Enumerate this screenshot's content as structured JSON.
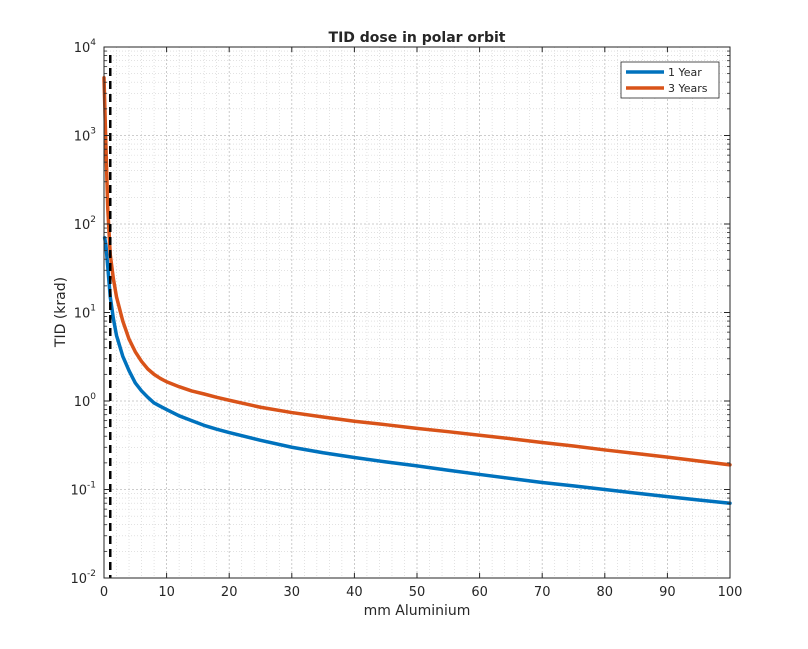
{
  "chart_data": {
    "type": "line",
    "title": "TID dose in polar orbit",
    "xlabel": "mm Aluminium",
    "ylabel": "TID (krad)",
    "xlim": [
      0,
      100
    ],
    "ylim": [
      0.01,
      10000
    ],
    "yscale": "log",
    "grid": true,
    "minor_grid": true,
    "legend_position": "top-right",
    "x_ticks": [
      "0",
      "10",
      "20",
      "30",
      "40",
      "50",
      "60",
      "70",
      "80",
      "90",
      "100"
    ],
    "y_ticks": [
      {
        "base": "10",
        "exp": "-2"
      },
      {
        "base": "10",
        "exp": "-1"
      },
      {
        "base": "10",
        "exp": "0"
      },
      {
        "base": "10",
        "exp": "1"
      },
      {
        "base": "10",
        "exp": "2"
      },
      {
        "base": "10",
        "exp": "3"
      },
      {
        "base": "10",
        "exp": "4"
      }
    ],
    "reference_line": {
      "x": 1,
      "style": "dashed",
      "color": "#000000"
    },
    "series": [
      {
        "name": "1 Year",
        "color": "#0072BD",
        "x": [
          0.1,
          0.3,
          0.5,
          1,
          1.5,
          2,
          3,
          4,
          5,
          6,
          7,
          8,
          9,
          10,
          12,
          14,
          16,
          18,
          20,
          25,
          30,
          35,
          40,
          45,
          50,
          55,
          60,
          65,
          70,
          75,
          80,
          85,
          90,
          95,
          100
        ],
        "y": [
          70,
          58,
          40,
          15,
          8.5,
          5.5,
          3.2,
          2.2,
          1.6,
          1.3,
          1.1,
          0.95,
          0.87,
          0.8,
          0.68,
          0.6,
          0.53,
          0.48,
          0.44,
          0.36,
          0.3,
          0.26,
          0.23,
          0.205,
          0.185,
          0.165,
          0.148,
          0.133,
          0.12,
          0.11,
          0.1,
          0.091,
          0.083,
          0.076,
          0.07
        ]
      },
      {
        "name": "3 Years",
        "color": "#D95319",
        "x": [
          0,
          0.3,
          0.6,
          1,
          1.5,
          2,
          3,
          4,
          5,
          6,
          7,
          8,
          9,
          10,
          12,
          14,
          16,
          18,
          20,
          25,
          30,
          35,
          40,
          45,
          50,
          55,
          60,
          65,
          70,
          75,
          80,
          85,
          90,
          95,
          100
        ],
        "y": [
          4500,
          800,
          150,
          45,
          24,
          15,
          8,
          5,
          3.6,
          2.8,
          2.3,
          2.0,
          1.8,
          1.65,
          1.45,
          1.3,
          1.2,
          1.1,
          1.02,
          0.85,
          0.74,
          0.66,
          0.59,
          0.54,
          0.49,
          0.45,
          0.41,
          0.375,
          0.34,
          0.31,
          0.28,
          0.255,
          0.232,
          0.21,
          0.19
        ]
      }
    ]
  }
}
